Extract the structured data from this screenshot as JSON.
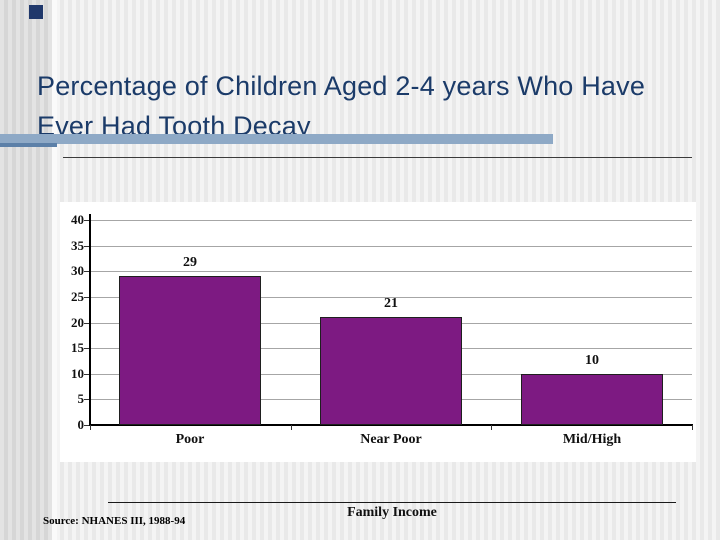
{
  "slide": {
    "title_lines": [
      "Percentage of Children Aged 2-4 years Who Have",
      "Ever Had Tooth Decay"
    ],
    "source": "Source: NHANES III, 1988-94"
  },
  "colors": {
    "title_text": "#1b3b69",
    "accent_bar": "#8ea9c6",
    "accent_bar_dark": "#5c80a8",
    "bullet_square": "#20386b",
    "bar_fill": "#7d1a82",
    "gridline": "#a6a6a6"
  },
  "chart_data": {
    "type": "bar",
    "title": "",
    "categories": [
      "Poor",
      "Near Poor",
      "Mid/High"
    ],
    "values": [
      29,
      21,
      10
    ],
    "data_labels": [
      "29",
      "21",
      "10"
    ],
    "xlabel": "Family Income",
    "ylabel": "",
    "ylim": [
      0,
      40
    ],
    "yticks": [
      0,
      5,
      10,
      15,
      20,
      25,
      30,
      35,
      40
    ],
    "grid": true,
    "legend": false
  }
}
